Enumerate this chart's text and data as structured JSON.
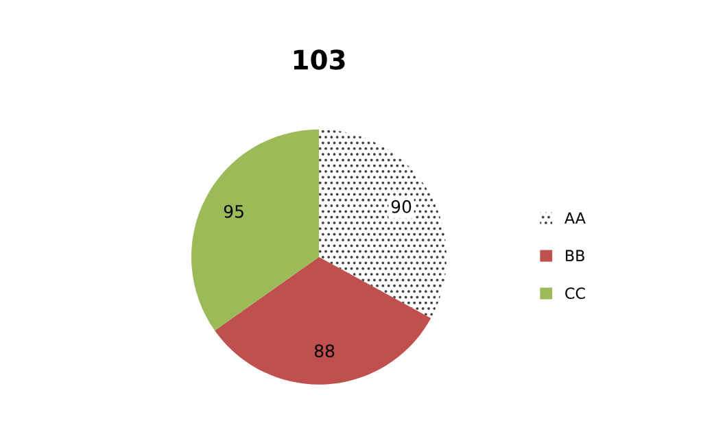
{
  "chart_data": {
    "type": "pie",
    "title": "103",
    "categories": [
      "AA",
      "BB",
      "CC"
    ],
    "values": [
      90,
      88,
      95
    ],
    "colors": [
      "#ffffff",
      "#c0504d",
      "#9bbb59"
    ],
    "data_labels": true,
    "legend": "right"
  }
}
